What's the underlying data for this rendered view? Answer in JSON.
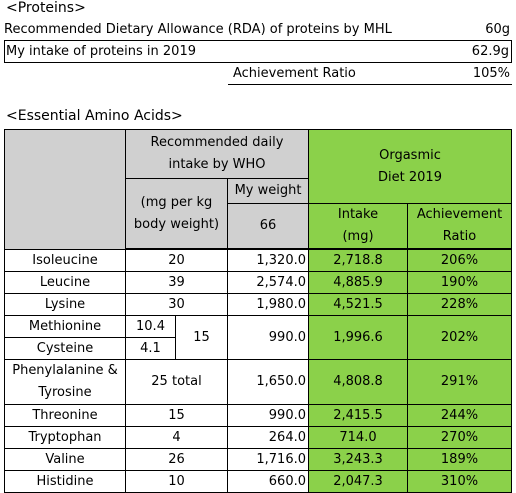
{
  "proteins": {
    "section_title": "<Proteins>",
    "rda_label": "Recommended Dietary Allowance (RDA) of proteins by MHL",
    "rda_value": "60g",
    "intake_label": "My intake of proteins in 2019",
    "intake_value": "62.9g",
    "ratio_label": "Achievement Ratio",
    "ratio_value": "105%"
  },
  "amino": {
    "section_title": "<Essential Amino Acids>",
    "headers": {
      "recommended": "Recommended daily intake by WHO",
      "mg_per_kg": "(mg per kg body weight)",
      "my_weight": "My weight",
      "weight_value": "66",
      "diet": "Orgasmic Diet 2019",
      "intake": "Intake (mg)",
      "achievement": "Achievement Ratio"
    },
    "rows": [
      {
        "name": "Isoleucine",
        "per_kg": "20",
        "need": "1,320.0",
        "intake": "2,718.8",
        "ratio": "206%"
      },
      {
        "name": "Leucine",
        "per_kg": "39",
        "need": "2,574.0",
        "intake": "4,885.9",
        "ratio": "190%"
      },
      {
        "name": "Lysine",
        "per_kg": "30",
        "need": "1,980.0",
        "intake": "4,521.5",
        "ratio": "228%"
      }
    ],
    "sulfur": {
      "name1": "Methionine",
      "val1": "10.4",
      "name2": "Cysteine",
      "val2": "4.1",
      "total": "15",
      "need": "990.0",
      "intake": "1,996.6",
      "ratio": "202%"
    },
    "aromatic": {
      "name": "Phenylalanine & Tyrosine",
      "per_kg": "25",
      "total_label": "total",
      "need": "1,650.0",
      "intake": "4,808.8",
      "ratio": "291%"
    },
    "rows2": [
      {
        "name": "Threonine",
        "per_kg": "15",
        "need": "990.0",
        "intake": "2,415.5",
        "ratio": "244%"
      },
      {
        "name": "Tryptophan",
        "per_kg": "4",
        "need": "264.0",
        "intake": "714.0",
        "ratio": "270%"
      },
      {
        "name": "Valine",
        "per_kg": "26",
        "need": "1,716.0",
        "intake": "3,243.3",
        "ratio": "189%"
      },
      {
        "name": "Histidine",
        "per_kg": "10",
        "need": "660.0",
        "intake": "2,047.3",
        "ratio": "310%"
      }
    ]
  }
}
